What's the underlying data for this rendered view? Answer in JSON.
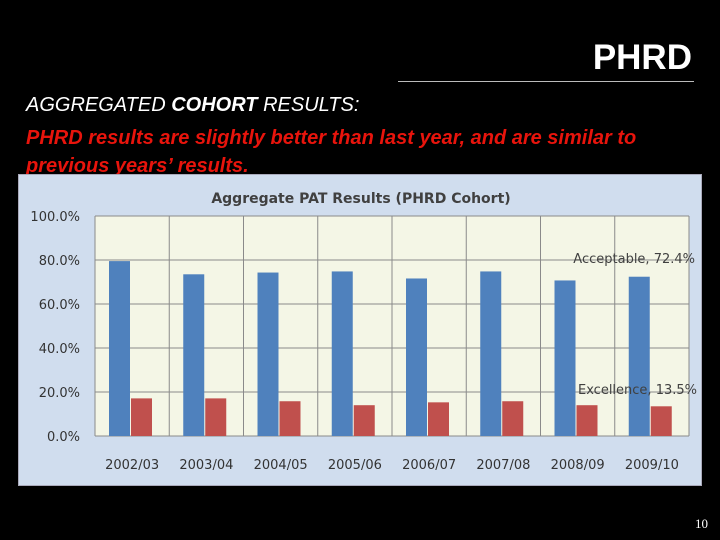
{
  "slide": {
    "title": "PHRD",
    "subtitle_part1": "AGGREGATED ",
    "subtitle_bold": "COHORT",
    "subtitle_part2": " RESULTS:",
    "highlight": "PHRD results are slightly better than last year, and are similar to previous years’ results.",
    "page_number": "10"
  },
  "colors": {
    "acceptable": "#4f81bd",
    "excellence": "#c0504d",
    "chart_bg": "#d0ddee",
    "plot_bg": "#f4f6e6"
  },
  "chart_data": {
    "type": "bar",
    "title": "Aggregate PAT Results (PHRD Cohort)",
    "categories": [
      "2002/03",
      "2003/04",
      "2004/05",
      "2005/06",
      "2006/07",
      "2007/08",
      "2008/09",
      "2009/10"
    ],
    "series": [
      {
        "name": "Acceptable",
        "values": [
          79.5,
          73.5,
          74.3,
          74.8,
          71.6,
          74.8,
          70.7,
          72.4
        ]
      },
      {
        "name": "Excellence",
        "values": [
          17.1,
          17.1,
          15.8,
          14.0,
          15.3,
          15.8,
          14.0,
          13.5
        ]
      }
    ],
    "annotations": [
      "Acceptable, 72.4%",
      "Excellence, 13.5%"
    ],
    "y_ticks": [
      "0.0%",
      "20.0%",
      "40.0%",
      "60.0%",
      "80.0%",
      "100.0%"
    ],
    "ylim": [
      0,
      100
    ],
    "grid": true,
    "legend": "none"
  }
}
